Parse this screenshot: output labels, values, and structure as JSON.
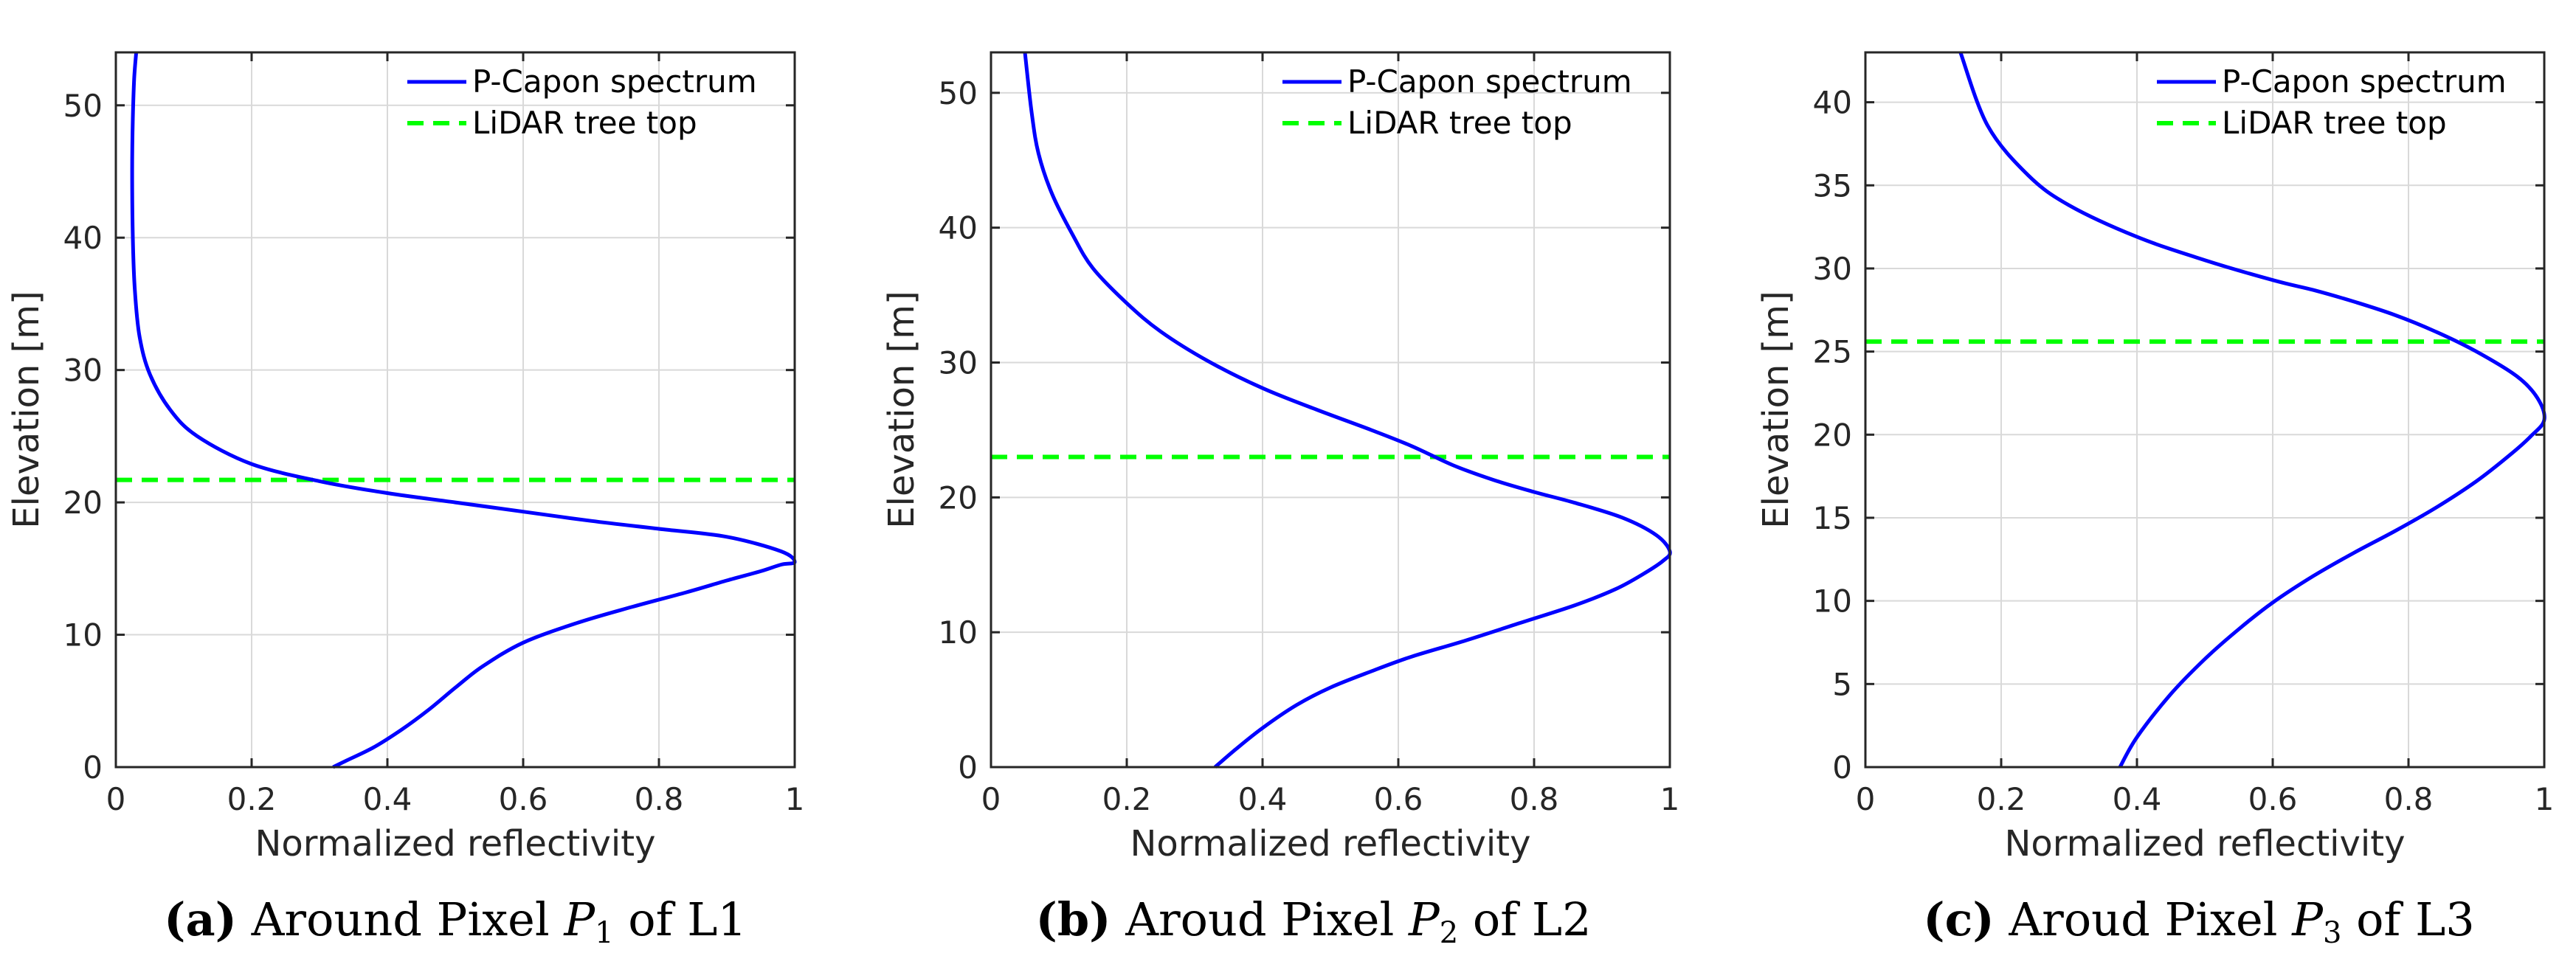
{
  "chart_data": [
    {
      "type": "line",
      "caption_letter": "(a)",
      "caption_text": " Around Pixel ",
      "caption_var": "P",
      "caption_sub": "1",
      "caption_suffix": " of L1",
      "xlabel": "Normalized reflectivity",
      "ylabel": "Elevation [m]",
      "xlim": [
        0,
        1
      ],
      "ylim": [
        0,
        54
      ],
      "xticks": [
        0,
        0.2,
        0.4,
        0.6,
        0.8,
        1
      ],
      "xtick_labels": [
        "0",
        "0.2",
        "0.4",
        "0.6",
        "0.8",
        "1"
      ],
      "yticks": [
        0,
        10,
        20,
        30,
        40,
        50
      ],
      "ytick_labels": [
        "0",
        "10",
        "20",
        "30",
        "40",
        "50"
      ],
      "legend": [
        "P-Capon spectrum",
        "LiDAR tree top"
      ],
      "lidar_tree_top": 21.7,
      "series": [
        {
          "name": "P-Capon spectrum",
          "color": "#0000ff",
          "x": [
            0.32,
            0.34,
            0.38,
            0.42,
            0.46,
            0.5,
            0.54,
            0.6,
            0.68,
            0.76,
            0.84,
            0.9,
            0.95,
            0.98,
            1.0,
            0.98,
            0.9,
            0.8,
            0.7,
            0.6,
            0.5,
            0.4,
            0.3,
            0.2,
            0.12,
            0.08,
            0.05,
            0.035,
            0.028,
            0.025,
            0.024,
            0.025,
            0.027,
            0.03
          ],
          "y": [
            0,
            0.5,
            1.5,
            2.8,
            4.3,
            6.0,
            7.6,
            9.4,
            10.9,
            12.1,
            13.2,
            14.1,
            14.8,
            15.3,
            15.5,
            16.3,
            17.4,
            18.0,
            18.6,
            19.3,
            20.0,
            20.7,
            21.6,
            22.9,
            25.0,
            27.0,
            29.7,
            32.5,
            36.0,
            40.0,
            45.0,
            49.0,
            52.0,
            54.0
          ]
        }
      ]
    },
    {
      "type": "line",
      "caption_letter": "(b)",
      "caption_text": " Aroud Pixel ",
      "caption_var": "P",
      "caption_sub": "2",
      "caption_suffix": " of L2",
      "xlabel": "Normalized reflectivity",
      "ylabel": "Elevation [m]",
      "xlim": [
        0,
        1
      ],
      "ylim": [
        0,
        53
      ],
      "xticks": [
        0,
        0.2,
        0.4,
        0.6,
        0.8,
        1
      ],
      "xtick_labels": [
        "0",
        "0.2",
        "0.4",
        "0.6",
        "0.8",
        "1"
      ],
      "yticks": [
        0,
        10,
        20,
        30,
        40,
        50
      ],
      "ytick_labels": [
        "0",
        "10",
        "20",
        "30",
        "40",
        "50"
      ],
      "legend": [
        "P-Capon spectrum",
        "LiDAR tree top"
      ],
      "lidar_tree_top": 23.0,
      "series": [
        {
          "name": "P-Capon spectrum",
          "color": "#0000ff",
          "x": [
            0.33,
            0.36,
            0.4,
            0.45,
            0.5,
            0.56,
            0.62,
            0.7,
            0.78,
            0.86,
            0.92,
            0.96,
            0.99,
            1.0,
            0.98,
            0.93,
            0.86,
            0.8,
            0.74,
            0.68,
            0.62,
            0.56,
            0.48,
            0.4,
            0.32,
            0.25,
            0.2,
            0.15,
            0.12,
            0.09,
            0.07,
            0.06,
            0.05
          ],
          "y": [
            0,
            1.3,
            2.9,
            4.6,
            5.9,
            7.1,
            8.2,
            9.4,
            10.7,
            12.0,
            13.2,
            14.3,
            15.3,
            16.0,
            17.2,
            18.5,
            19.6,
            20.4,
            21.3,
            22.4,
            23.8,
            25.0,
            26.5,
            28.1,
            30.1,
            32.3,
            34.4,
            37.0,
            39.5,
            42.5,
            45.5,
            48.5,
            53.0
          ]
        }
      ]
    },
    {
      "type": "line",
      "caption_letter": "(c)",
      "caption_text": " Aroud Pixel ",
      "caption_var": "P",
      "caption_sub": "3",
      "caption_suffix": " of L3",
      "xlabel": "Normalized reflectivity",
      "ylabel": "Elevation [m]",
      "xlim": [
        0,
        1
      ],
      "ylim": [
        0,
        43
      ],
      "xticks": [
        0,
        0.2,
        0.4,
        0.6,
        0.8,
        1
      ],
      "xtick_labels": [
        "0",
        "0.2",
        "0.4",
        "0.6",
        "0.8",
        "1"
      ],
      "yticks": [
        0,
        5,
        10,
        15,
        20,
        25,
        30,
        35,
        40
      ],
      "ytick_labels": [
        "0",
        "5",
        "10",
        "15",
        "20",
        "25",
        "30",
        "35",
        "40"
      ],
      "legend": [
        "P-Capon spectrum",
        "LiDAR tree top"
      ],
      "lidar_tree_top": 25.6,
      "series": [
        {
          "name": "P-Capon spectrum",
          "color": "#0000ff",
          "x": [
            0.375,
            0.4,
            0.45,
            0.5,
            0.55,
            0.6,
            0.66,
            0.72,
            0.78,
            0.84,
            0.9,
            0.95,
            0.98,
            1.0,
            0.99,
            0.96,
            0.9,
            0.84,
            0.78,
            0.72,
            0.66,
            0.6,
            0.5,
            0.4,
            0.3,
            0.24,
            0.18,
            0.14
          ],
          "y": [
            0,
            1.8,
            4.4,
            6.5,
            8.3,
            9.9,
            11.5,
            12.9,
            14.2,
            15.6,
            17.2,
            18.8,
            19.9,
            20.9,
            22.2,
            23.5,
            25.0,
            26.2,
            27.2,
            28.0,
            28.7,
            29.3,
            30.5,
            31.9,
            33.8,
            35.6,
            38.6,
            43.0
          ]
        }
      ]
    }
  ]
}
